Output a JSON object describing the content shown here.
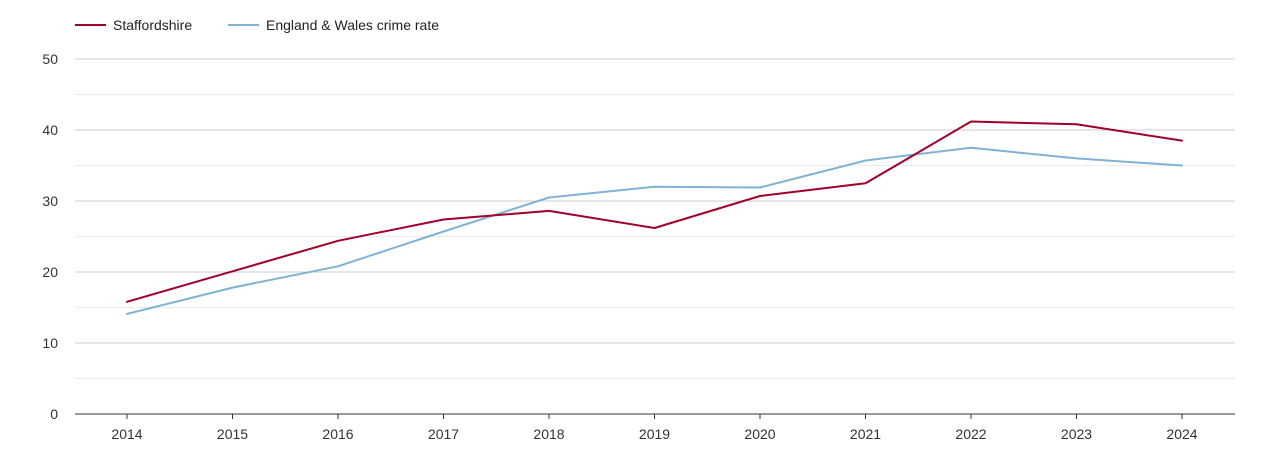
{
  "chart_data": {
    "type": "line",
    "title": "",
    "xlabel": "",
    "ylabel": "",
    "categories": [
      "2014",
      "2015",
      "2016",
      "2017",
      "2018",
      "2019",
      "2020",
      "2021",
      "2022",
      "2023",
      "2024"
    ],
    "ylim": [
      0,
      50
    ],
    "yticks": [
      0,
      10,
      20,
      30,
      40,
      50
    ],
    "grid": true,
    "legend_position": "top-left",
    "series": [
      {
        "name": "Staffordshire",
        "color": "#a0002c",
        "values": [
          15.8,
          20.1,
          24.4,
          27.4,
          28.6,
          26.2,
          30.7,
          32.5,
          41.2,
          40.8,
          38.5
        ]
      },
      {
        "name": "England & Wales crime rate",
        "color": "#7fb2d3",
        "values": [
          14.1,
          17.8,
          20.8,
          25.7,
          30.5,
          32.0,
          31.9,
          35.7,
          37.5,
          36.0,
          35.0
        ]
      }
    ]
  }
}
